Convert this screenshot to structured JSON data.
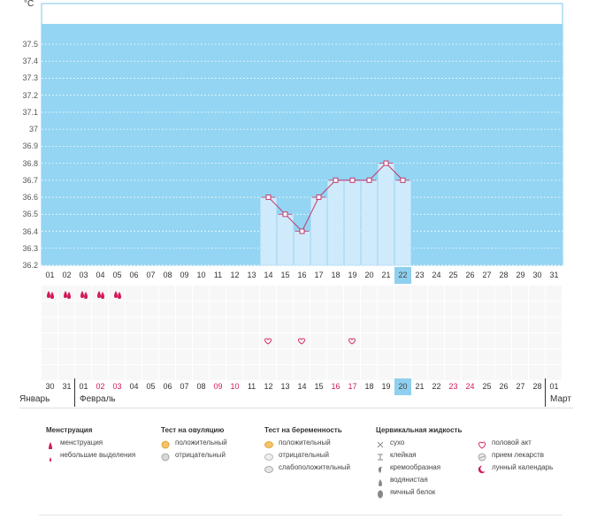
{
  "colors": {
    "plot_background": "#93d5f3",
    "bar_fill": "#cfeafb",
    "line": "#c0396b",
    "marker_fill": "#ffffff",
    "current_day_bg": "#8fd0ef",
    "red_day": "#d2195c",
    "grid_bg": "#f7f7f7",
    "grid_line": "#eaeaea"
  },
  "chart_data": {
    "type": "line",
    "unit_label": "°C",
    "y_ticks": [
      "37.5",
      "37.4",
      "37.3",
      "37.2",
      "37.1",
      "37",
      "36.9",
      "36.8",
      "36.7",
      "36.6",
      "36.5",
      "36.4",
      "36.3",
      "36.2"
    ],
    "ylim": [
      36.2,
      37.5
    ],
    "grid": true,
    "x_ticks": [
      "01",
      "02",
      "03",
      "04",
      "05",
      "06",
      "07",
      "08",
      "09",
      "10",
      "11",
      "12",
      "13",
      "14",
      "15",
      "16",
      "17",
      "18",
      "19",
      "20",
      "21",
      "22",
      "23",
      "24",
      "25",
      "26",
      "27",
      "28",
      "29",
      "30",
      "31"
    ],
    "current_x": "22",
    "series": [
      {
        "x": [
          14,
          15,
          16,
          17,
          18,
          19,
          20,
          21,
          22
        ],
        "y": [
          36.6,
          36.5,
          36.4,
          36.6,
          36.7,
          36.7,
          36.7,
          36.8,
          36.7
        ]
      }
    ]
  },
  "calendar": {
    "days": [
      {
        "label": "30",
        "red": false
      },
      {
        "label": "31",
        "red": false
      },
      {
        "label": "01",
        "red": false
      },
      {
        "label": "02",
        "red": true
      },
      {
        "label": "03",
        "red": true
      },
      {
        "label": "04",
        "red": false
      },
      {
        "label": "05",
        "red": false
      },
      {
        "label": "06",
        "red": false
      },
      {
        "label": "07",
        "red": false
      },
      {
        "label": "08",
        "red": false
      },
      {
        "label": "09",
        "red": true
      },
      {
        "label": "10",
        "red": true
      },
      {
        "label": "11",
        "red": false
      },
      {
        "label": "12",
        "red": false
      },
      {
        "label": "13",
        "red": false
      },
      {
        "label": "14",
        "red": false
      },
      {
        "label": "15",
        "red": false
      },
      {
        "label": "16",
        "red": true
      },
      {
        "label": "17",
        "red": true
      },
      {
        "label": "18",
        "red": false
      },
      {
        "label": "19",
        "red": false
      },
      {
        "label": "20",
        "red": false
      },
      {
        "label": "21",
        "red": false
      },
      {
        "label": "22",
        "red": false
      },
      {
        "label": "23",
        "red": true
      },
      {
        "label": "24",
        "red": true
      },
      {
        "label": "25",
        "red": false
      },
      {
        "label": "26",
        "red": false
      },
      {
        "label": "27",
        "red": false
      },
      {
        "label": "28",
        "red": false
      },
      {
        "label": "01",
        "red": false
      }
    ],
    "current_day_index": 21,
    "months": [
      {
        "name": "Январь"
      },
      {
        "name": "Февраль"
      },
      {
        "name": "Март"
      }
    ],
    "menstruation_days": [
      1,
      2,
      3,
      4,
      5
    ],
    "intercourse_days": [
      14,
      16,
      19
    ]
  },
  "legend": {
    "groups": [
      {
        "title": "Менструация",
        "items": [
          {
            "icon": "drop-large-icon",
            "label": "менструация"
          },
          {
            "icon": "drop-small-icon",
            "label": "небольшие выделения"
          }
        ]
      },
      {
        "title": "Тест на овуляцию",
        "items": [
          {
            "icon": "test-positive-icon",
            "label": "положительный"
          },
          {
            "icon": "test-negative-icon",
            "label": "отрицательный"
          }
        ]
      },
      {
        "title": "Тест на беременность",
        "items": [
          {
            "icon": "pregnancy-positive-icon",
            "label": "положительный"
          },
          {
            "icon": "pregnancy-negative-icon",
            "label": "отрицательный"
          },
          {
            "icon": "pregnancy-weak-icon",
            "label": "слабоположительный"
          }
        ]
      },
      {
        "title": "Цервикальная жидкость",
        "items": [
          {
            "icon": "dry-icon",
            "label": "сухо"
          },
          {
            "icon": "sticky-icon",
            "label": "клейкая"
          },
          {
            "icon": "creamy-icon",
            "label": "кремообразная"
          },
          {
            "icon": "watery-icon",
            "label": "водянистая"
          },
          {
            "icon": "eggwhite-icon",
            "label": "яичный белок"
          }
        ]
      },
      {
        "title": "",
        "items": [
          {
            "icon": "heart-icon",
            "label": "половой акт"
          },
          {
            "icon": "pill-icon",
            "label": "прием лекарств"
          },
          {
            "icon": "moon-icon",
            "label": "лунный календарь"
          }
        ]
      }
    ]
  }
}
